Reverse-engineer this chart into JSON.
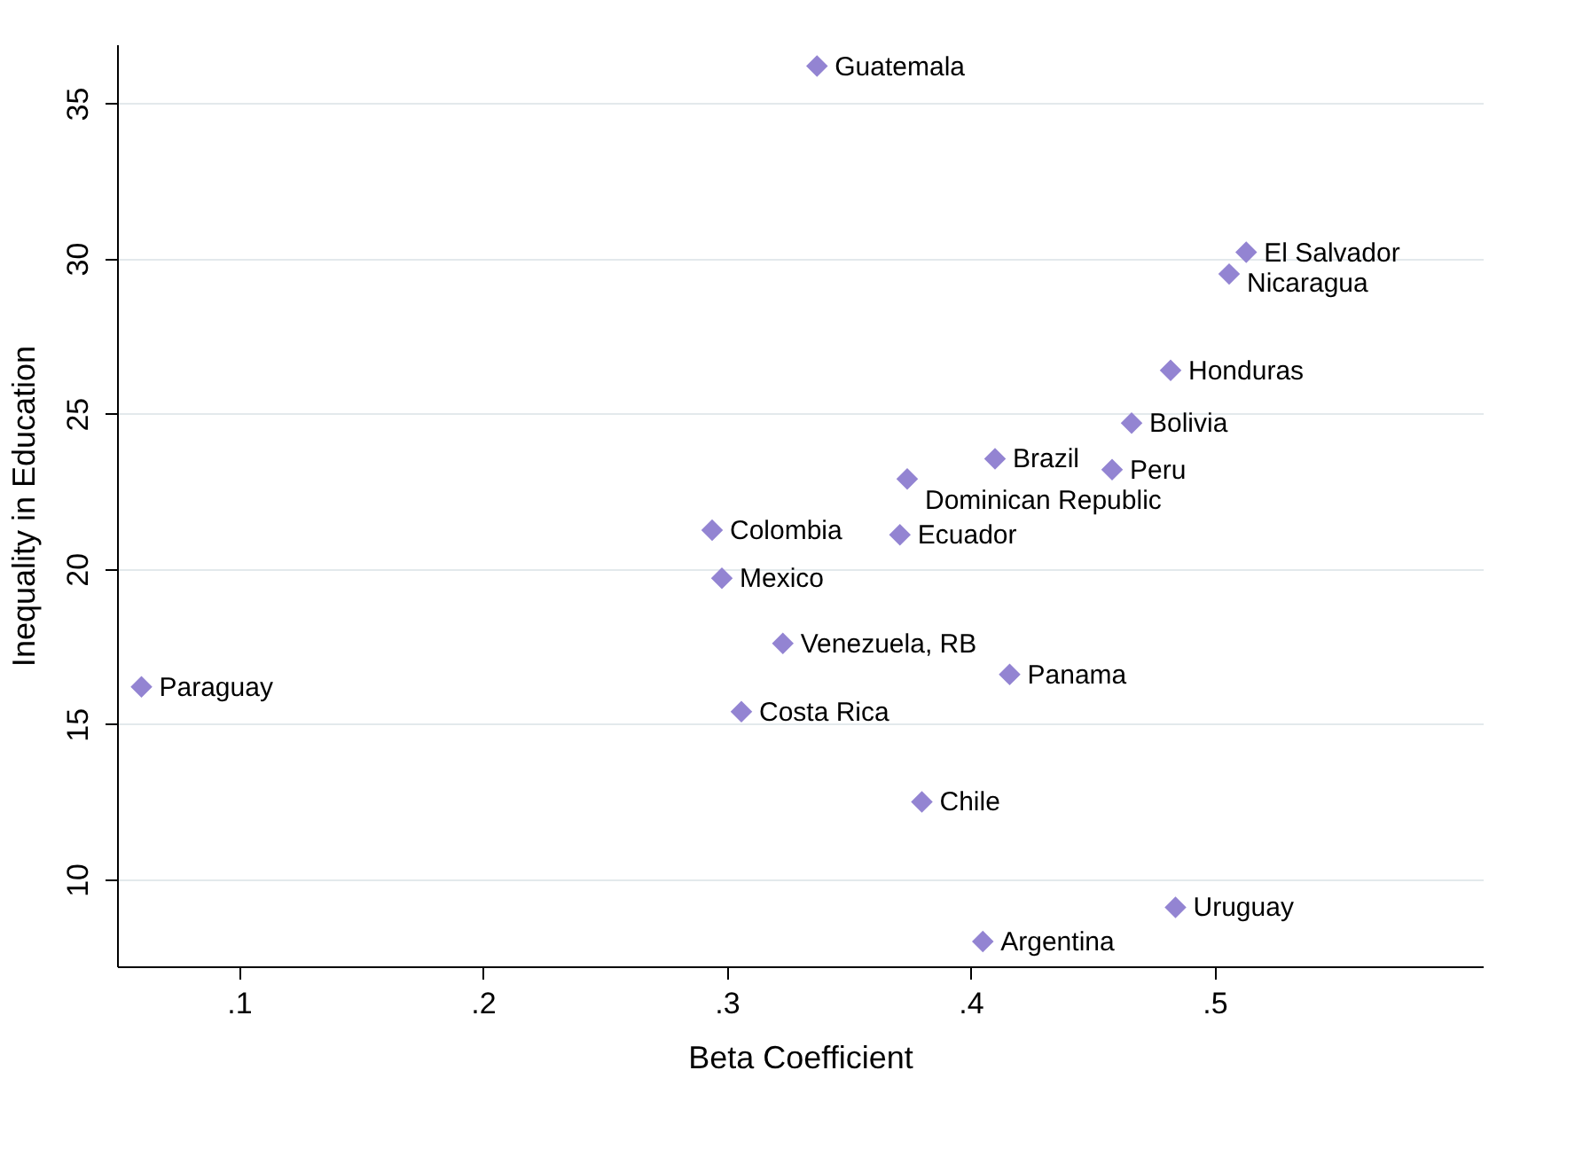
{
  "chart_data": {
    "type": "scatter",
    "xlabel": "Beta Coefficient",
    "ylabel": "Inequality in Education",
    "x": [
      0.337,
      0.513,
      0.506,
      0.482,
      0.466,
      0.41,
      0.458,
      0.374,
      0.294,
      0.371,
      0.298,
      0.323,
      0.06,
      0.416,
      0.306,
      0.38,
      0.484,
      0.405
    ],
    "values": [
      36.2,
      30.2,
      29.5,
      26.4,
      24.7,
      23.55,
      23.2,
      22.9,
      21.25,
      21.1,
      19.7,
      17.6,
      16.2,
      16.6,
      15.4,
      12.5,
      9.1,
      8.0
    ],
    "color": "#9384d2",
    "marker": "diamond",
    "grid": "y",
    "xlim": [
      0.05,
      0.61
    ],
    "ylim": [
      7.2,
      36.9
    ],
    "xticks": [
      {
        "value": 0.1,
        "label": ".1"
      },
      {
        "value": 0.2,
        "label": ".2"
      },
      {
        "value": 0.3,
        "label": ".3"
      },
      {
        "value": 0.4,
        "label": ".4"
      },
      {
        "value": 0.5,
        "label": ".5"
      }
    ],
    "yticks": [
      10,
      15,
      20,
      25,
      30,
      35
    ],
    "annotations": [
      {
        "text": "Guatemala",
        "x": 0.337,
        "y": 36.2
      },
      {
        "text": "El Salvador",
        "x": 0.513,
        "y": 30.2
      },
      {
        "text": "Nicaragua",
        "x": 0.506,
        "y": 29.5
      },
      {
        "text": "Honduras",
        "x": 0.482,
        "y": 26.4
      },
      {
        "text": "Bolivia",
        "x": 0.466,
        "y": 24.7
      },
      {
        "text": "Brazil",
        "x": 0.41,
        "y": 23.55
      },
      {
        "text": "Peru",
        "x": 0.458,
        "y": 23.2
      },
      {
        "text": "Dominican Republic",
        "x": 0.374,
        "y": 22.9
      },
      {
        "text": "Colombia",
        "x": 0.294,
        "y": 21.25
      },
      {
        "text": "Ecuador",
        "x": 0.371,
        "y": 21.1
      },
      {
        "text": "Mexico",
        "x": 0.298,
        "y": 19.7
      },
      {
        "text": "Venezuela, RB",
        "x": 0.323,
        "y": 17.6
      },
      {
        "text": "Paraguay",
        "x": 0.06,
        "y": 16.2
      },
      {
        "text": "Panama",
        "x": 0.416,
        "y": 16.6
      },
      {
        "text": "Costa Rica",
        "x": 0.306,
        "y": 15.4
      },
      {
        "text": "Chile",
        "x": 0.38,
        "y": 12.5
      },
      {
        "text": "Uruguay",
        "x": 0.484,
        "y": 9.1
      },
      {
        "text": "Argentina",
        "x": 0.405,
        "y": 8.0
      }
    ]
  }
}
